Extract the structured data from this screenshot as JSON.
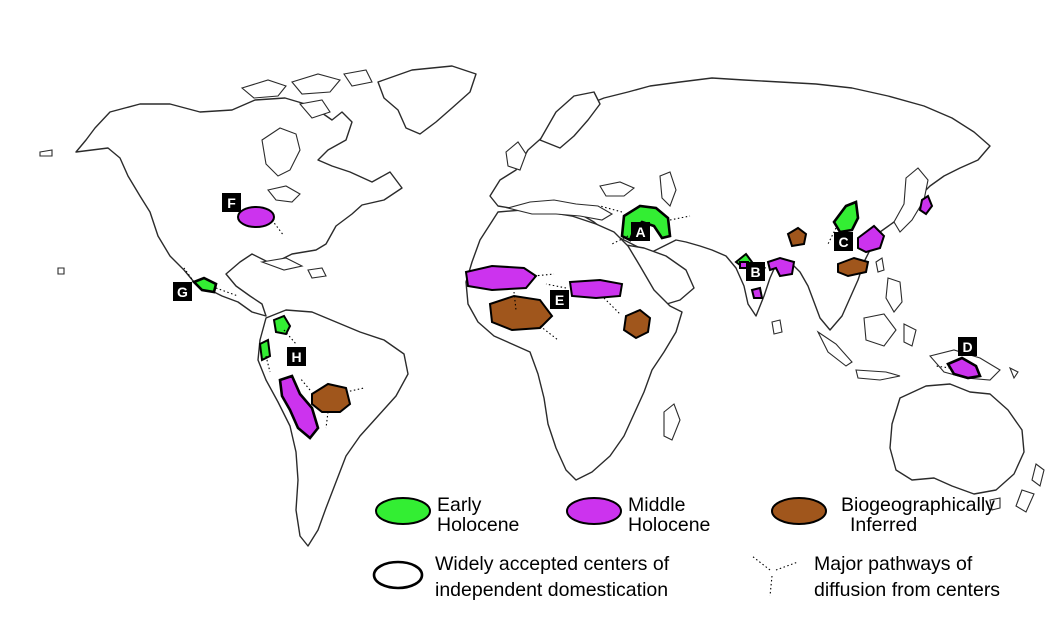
{
  "colors": {
    "early_holocene": "#33ee33",
    "middle_holocene": "#cc33ee",
    "biogeographically_inferred": "#a0561c",
    "outline": "#2b2b2b"
  },
  "centers": {
    "A": "A",
    "B": "B",
    "C": "C",
    "D": "D",
    "E": "E",
    "F": "F",
    "G": "G",
    "H": "H"
  },
  "legend": {
    "early_label_1": "Early",
    "early_label_2": "Holocene",
    "middle_label_1": "Middle",
    "middle_label_2": "Holocene",
    "inferred_label_1": "Biogeographically",
    "inferred_label_2": "Inferred",
    "accepted_label_1": "Widely accepted centers of",
    "accepted_label_2": "independent domestication",
    "pathways_label_1": "Major pathways of",
    "pathways_label_2": "diffusion from centers"
  }
}
